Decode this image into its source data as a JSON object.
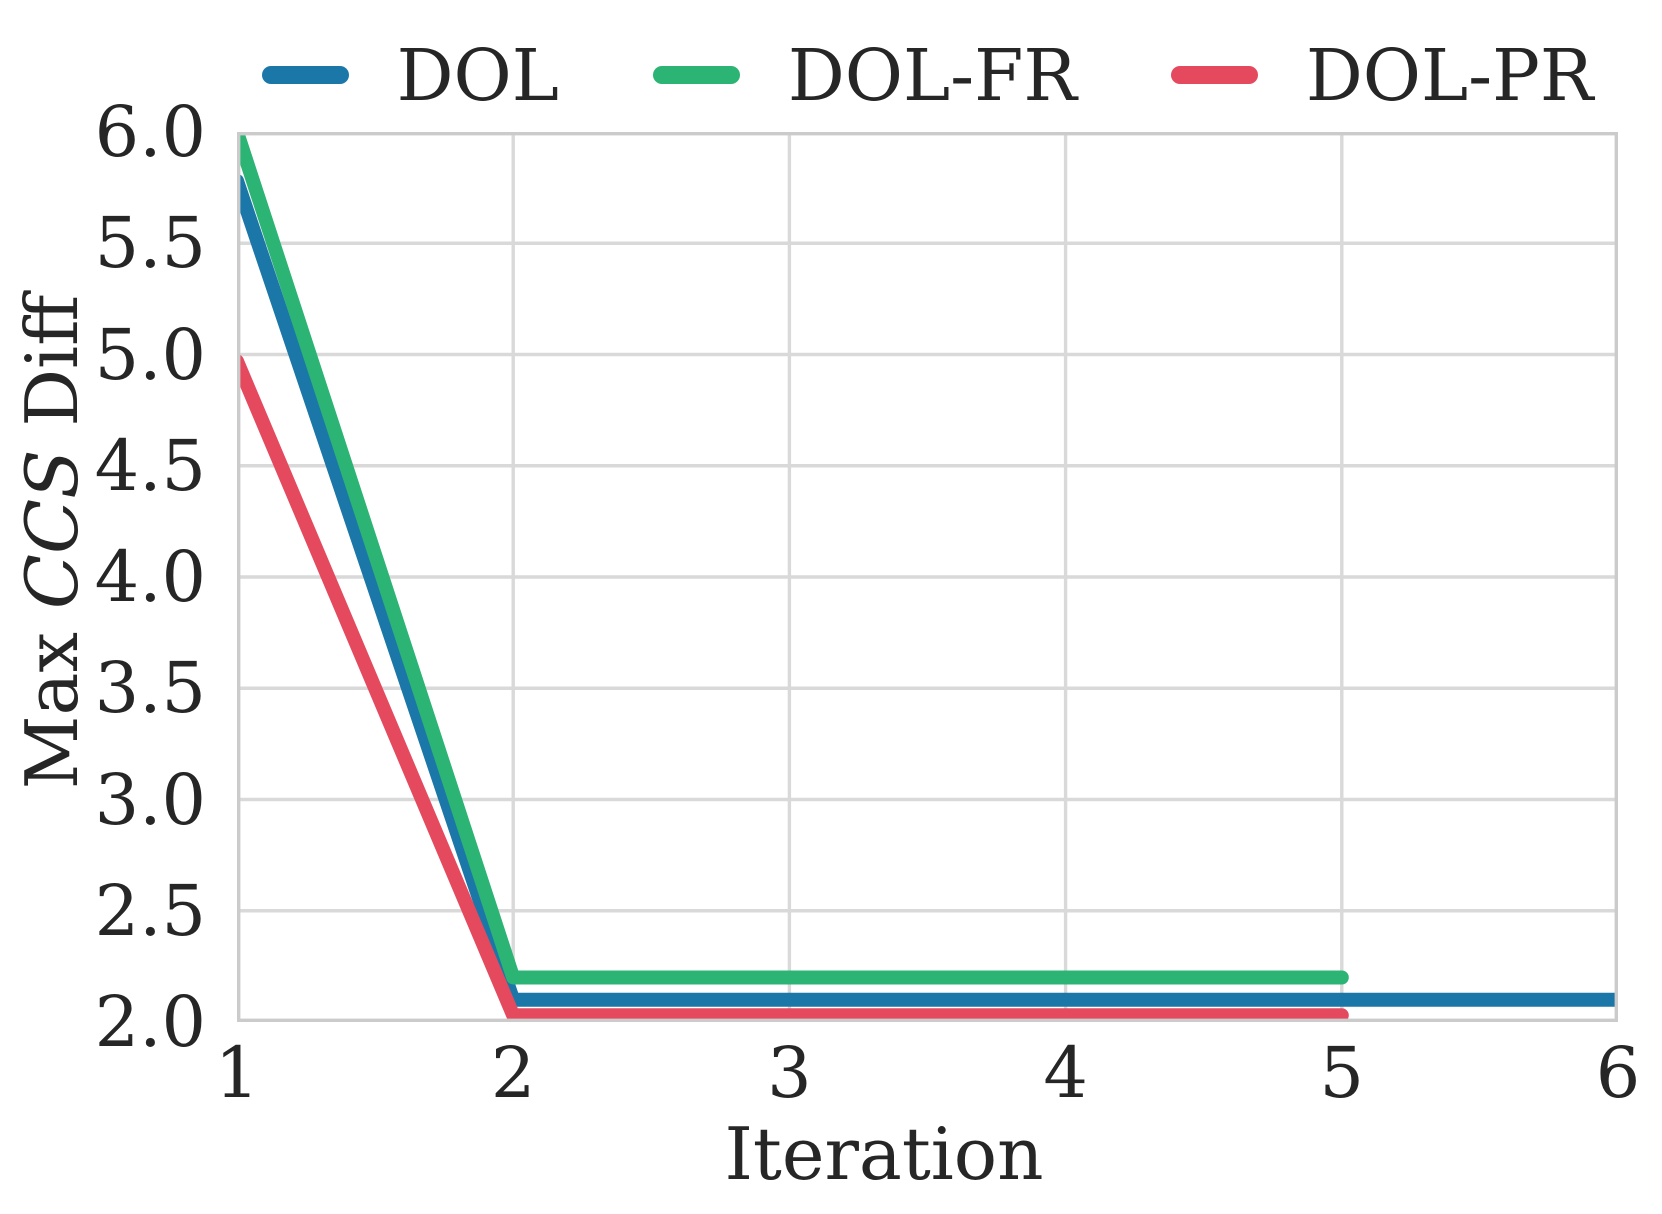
{
  "chart_data": {
    "type": "line",
    "xlabel": "Iteration",
    "ylabel": {
      "prefix": "Max ",
      "math": "CCS",
      "suffix": " Diff"
    },
    "xlim": [
      1,
      6
    ],
    "ylim": [
      2.0,
      6.0
    ],
    "grid": true,
    "legend_position": "top-center",
    "x_ticks": [
      1,
      2,
      3,
      4,
      5,
      6
    ],
    "x_tick_labels": [
      "1",
      "2",
      "3",
      "4",
      "5",
      "6"
    ],
    "y_ticks": [
      2.0,
      2.5,
      3.0,
      3.5,
      4.0,
      4.5,
      5.0,
      5.5,
      6.0
    ],
    "y_tick_labels": [
      "2.0",
      "2.5",
      "3.0",
      "3.5",
      "4.0",
      "4.5",
      "5.0",
      "5.5",
      "6.0"
    ],
    "line_width": 14,
    "series": [
      {
        "name": "DOL",
        "color": "#1B77A7",
        "x": [
          1,
          2,
          3,
          4,
          5,
          6
        ],
        "y": [
          5.78,
          2.1,
          2.1,
          2.1,
          2.1,
          2.1
        ]
      },
      {
        "name": "DOL-FR",
        "color": "#2BB473",
        "x": [
          1,
          2,
          3,
          4,
          5
        ],
        "y": [
          6.0,
          2.2,
          2.2,
          2.2,
          2.2
        ]
      },
      {
        "name": "DOL-PR",
        "color": "#E5495E",
        "x": [
          1,
          2,
          3,
          4,
          5
        ],
        "y": [
          4.97,
          2.03,
          2.03,
          2.03,
          2.03
        ]
      }
    ],
    "colors": {
      "grid": "#D9D9D9",
      "spine": "#CBCBCB",
      "text": "#262626",
      "background": "#FFFFFF"
    }
  }
}
